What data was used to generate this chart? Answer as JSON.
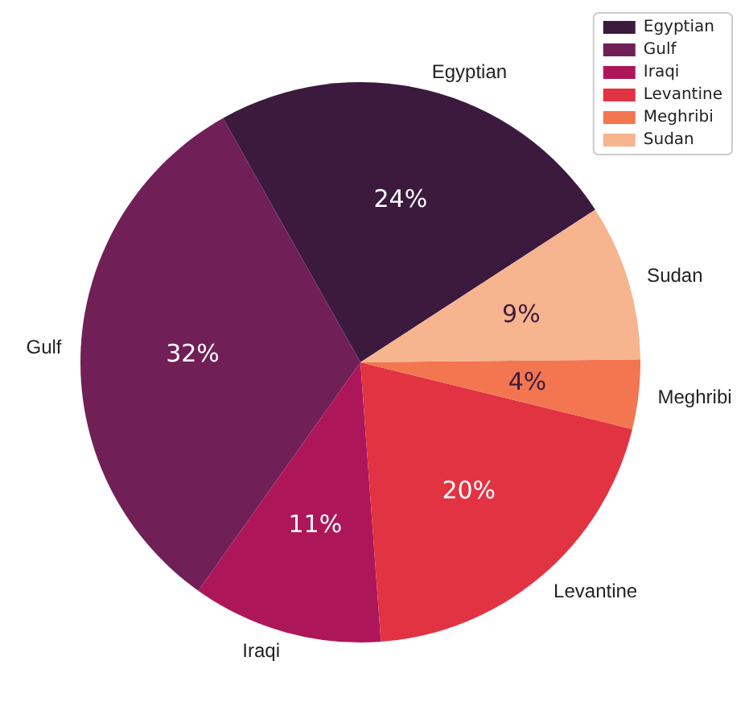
{
  "chart_data": {
    "type": "pie",
    "categories": [
      "Egyptian",
      "Gulf",
      "Iraqi",
      "Levantine",
      "Meghribi",
      "Sudan"
    ],
    "values": [
      24,
      32,
      11,
      20,
      4,
      9
    ],
    "value_labels": [
      "24%",
      "32%",
      "11%",
      "20%",
      "4%",
      "9%"
    ],
    "colors": [
      "#3b1a3e",
      "#701f57",
      "#ad1759",
      "#e13342",
      "#f37651",
      "#f6b48f"
    ],
    "legend": "top right"
  }
}
